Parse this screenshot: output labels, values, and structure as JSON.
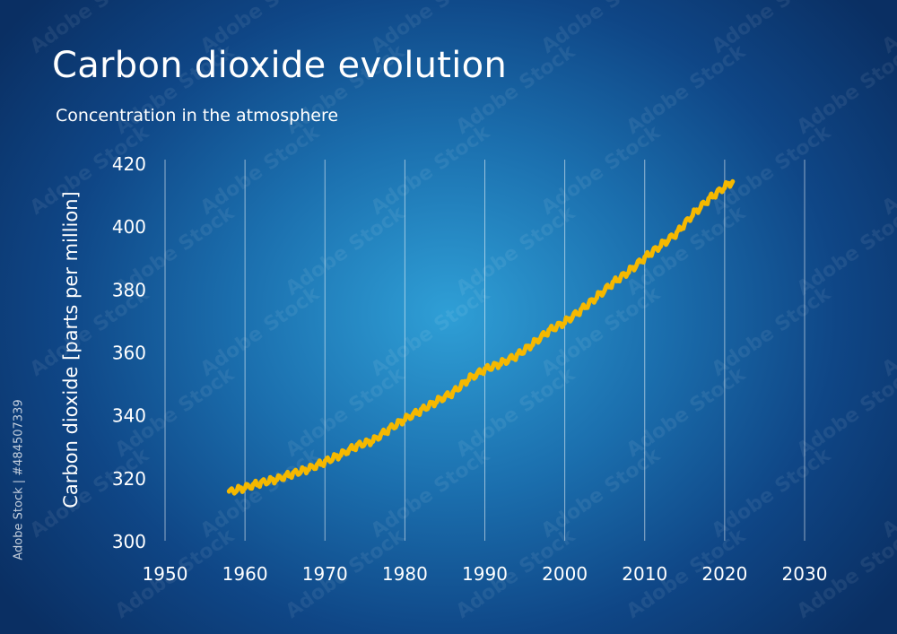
{
  "watermark": {
    "text": "Adobe Stock",
    "id_text": "Adobe Stock | #484507339"
  },
  "chart_data": {
    "type": "line",
    "title": "Carbon dioxide evolution",
    "subtitle": "Concentration in the atmosphere",
    "xlabel": "",
    "ylabel": "Carbon dioxide [parts per million]",
    "xlim": [
      1950,
      2030
    ],
    "ylim": [
      300,
      420
    ],
    "xticks": [
      1950,
      1960,
      1970,
      1980,
      1990,
      2000,
      2010,
      2020,
      2030
    ],
    "yticks": [
      300,
      320,
      340,
      360,
      380,
      400,
      420
    ],
    "grid": "vertical",
    "line_color": "#f5b800",
    "series": [
      {
        "x": [
          1958,
          1960,
          1962,
          1964,
          1966,
          1968,
          1970,
          1972,
          1974,
          1976,
          1978,
          1980,
          1982,
          1984,
          1986,
          1988,
          1990,
          1992,
          1994,
          1996,
          1998,
          2000,
          2002,
          2004,
          2006,
          2008,
          2010,
          2012,
          2014,
          2016,
          2018,
          2020,
          2021
        ],
        "values": [
          315.5,
          316.9,
          318.4,
          319.6,
          321.3,
          322.9,
          325.1,
          327.4,
          330.2,
          331.8,
          335.4,
          338.7,
          341.4,
          344.4,
          347.0,
          351.5,
          354.4,
          356.4,
          358.8,
          362.6,
          366.7,
          369.5,
          373.2,
          377.5,
          381.9,
          385.6,
          389.9,
          393.9,
          397.7,
          403.7,
          408.5,
          412.5,
          414.2
        ]
      }
    ]
  }
}
